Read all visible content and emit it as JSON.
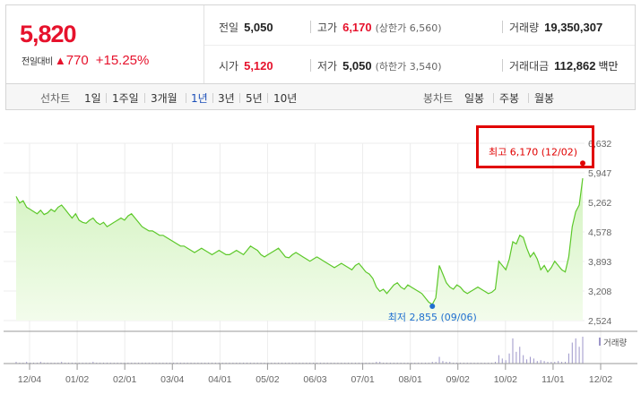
{
  "summary": {
    "price": "5,820",
    "change_label": "전일대비",
    "change_arrow": "▲",
    "change_value": "770",
    "change_pct": "+15.25%",
    "prev_close": {
      "label": "전일",
      "value": "5,050"
    },
    "high": {
      "label": "고가",
      "value": "6,170",
      "sub": "(상한가 6,560)"
    },
    "volume": {
      "label": "거래량",
      "value": "19,350,307"
    },
    "open": {
      "label": "시가",
      "value": "5,120"
    },
    "low": {
      "label": "저가",
      "value": "5,050",
      "sub": "(하한가 3,540)"
    },
    "amount": {
      "label": "거래대금",
      "value": "112,862",
      "unit": "백만"
    }
  },
  "periods": {
    "line_label": "선차트",
    "line_options": [
      "1일",
      "1주일",
      "3개월",
      "1년",
      "3년",
      "5년",
      "10년"
    ],
    "active": "1년",
    "candle_label": "봉차트",
    "candle_options": [
      "일봉",
      "주봉",
      "월봉"
    ]
  },
  "colors": {
    "up": "#e6122c",
    "active": "#1a4eb8",
    "line": "#5cc829",
    "fill_top": "#d6f5c3",
    "low_marker": "#1f6fd0"
  },
  "chart_data": {
    "type": "area",
    "title": "",
    "x_ticks": [
      "12/04",
      "01/02",
      "02/01",
      "03/04",
      "04/01",
      "05/02",
      "06/03",
      "07/01",
      "08/01",
      "09/02",
      "10/02",
      "11/01",
      "12/02"
    ],
    "y_ticks": [
      "6,632",
      "5,947",
      "5,262",
      "4,578",
      "3,893",
      "3,208",
      "2,524"
    ],
    "ylim": [
      2524,
      6632
    ],
    "grid": true,
    "series": [
      {
        "values": [
          5400,
          5250,
          5300,
          5150,
          5100,
          5050,
          5000,
          5080,
          4980,
          5020,
          5100,
          5050,
          5150,
          5200,
          5100,
          5000,
          4900,
          5000,
          4850,
          4800,
          4780,
          4850,
          4900,
          4800,
          4750,
          4800,
          4700,
          4750,
          4800,
          4850,
          4900,
          4850,
          4950,
          5000,
          4900,
          4800,
          4700,
          4650,
          4600,
          4600,
          4550,
          4500,
          4500,
          4450,
          4400,
          4350,
          4300,
          4250,
          4250,
          4200,
          4150,
          4100,
          4150,
          4200,
          4150,
          4100,
          4050,
          4100,
          4150,
          4100,
          4050,
          4050,
          4100,
          4150,
          4100,
          4050,
          4150,
          4250,
          4200,
          4150,
          4050,
          4000,
          4050,
          4100,
          4150,
          4200,
          4100,
          4000,
          3980,
          4050,
          4100,
          4050,
          4000,
          3950,
          3900,
          3950,
          4000,
          3950,
          3900,
          3850,
          3800,
          3750,
          3800,
          3850,
          3800,
          3750,
          3700,
          3800,
          3850,
          3750,
          3650,
          3600,
          3500,
          3300,
          3200,
          3250,
          3150,
          3250,
          3350,
          3400,
          3300,
          3250,
          3350,
          3300,
          3250,
          3200,
          3150,
          3050,
          2950,
          2900,
          3050,
          3800,
          3600,
          3400,
          3300,
          3250,
          3350,
          3300,
          3200,
          3150,
          3200,
          3250,
          3300,
          3250,
          3200,
          3150,
          3180,
          3250,
          3900,
          3800,
          3700,
          3950,
          4350,
          4300,
          4500,
          4450,
          4200,
          4000,
          4100,
          3950,
          3700,
          3800,
          3650,
          3750,
          3900,
          3800,
          3700,
          3650,
          4000,
          4700,
          5050,
          5200,
          5820
        ]
      }
    ],
    "annotations": [
      {
        "label": "최고 6,170 (12/02)",
        "value": 6170
      },
      {
        "label": "최저 2,855 (09/06)",
        "value": 2855
      }
    ],
    "volume_label": "거래량",
    "volume_values": [
      2,
      1,
      1,
      2,
      1,
      1,
      1,
      2,
      1,
      1,
      1,
      1,
      1,
      2,
      1,
      1,
      1,
      1,
      1,
      1,
      1,
      1,
      2,
      1,
      1,
      1,
      1,
      1,
      1,
      1,
      1,
      1,
      1,
      1,
      1,
      1,
      1,
      1,
      1,
      1,
      1,
      1,
      1,
      1,
      1,
      1,
      1,
      1,
      1,
      1,
      1,
      1,
      1,
      1,
      1,
      1,
      1,
      1,
      1,
      1,
      1,
      1,
      1,
      1,
      1,
      1,
      1,
      1,
      1,
      1,
      1,
      1,
      1,
      1,
      1,
      1,
      1,
      1,
      1,
      1,
      1,
      1,
      1,
      1,
      1,
      1,
      1,
      1,
      1,
      1,
      1,
      1,
      1,
      1,
      1,
      1,
      1,
      1,
      1,
      1,
      1,
      1,
      1,
      2,
      2,
      1,
      1,
      1,
      1,
      1,
      1,
      1,
      1,
      1,
      1,
      1,
      1,
      1,
      1,
      2,
      2,
      8,
      3,
      2,
      2,
      1,
      1,
      1,
      1,
      1,
      1,
      1,
      1,
      1,
      1,
      1,
      1,
      2,
      10,
      6,
      4,
      12,
      30,
      14,
      20,
      10,
      5,
      8,
      6,
      3,
      4,
      3,
      2,
      2,
      2,
      3,
      2,
      2,
      12,
      25,
      30,
      20,
      32
    ]
  }
}
